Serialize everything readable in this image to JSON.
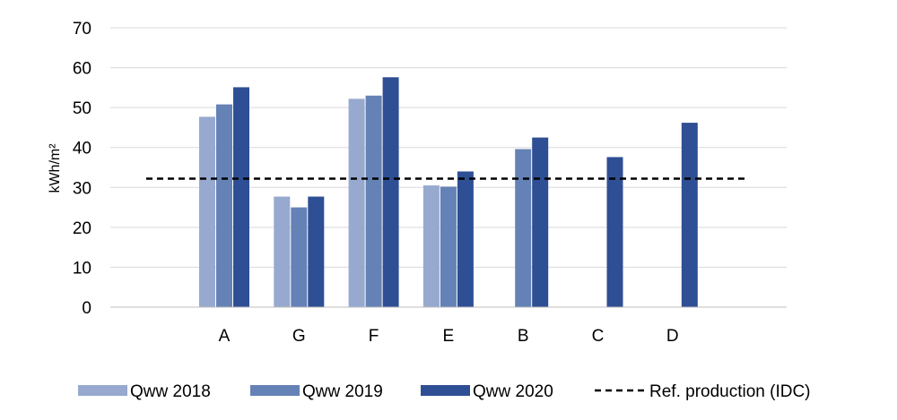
{
  "chart_data": {
    "type": "bar",
    "title": "",
    "xlabel": "",
    "ylabel": "kWh/m²",
    "ylim": [
      0,
      70
    ],
    "yticks": [
      0,
      10,
      20,
      30,
      40,
      50,
      60,
      70
    ],
    "grid": true,
    "legend_position": "bottom",
    "categories": [
      "A",
      "G",
      "F",
      "E",
      "B",
      "C",
      "D"
    ],
    "series": [
      {
        "name": "Qww 2018",
        "color": "#97a9cf",
        "values": [
          47.7,
          27.7,
          52.2,
          30.5,
          null,
          null,
          null
        ]
      },
      {
        "name": "Qww 2019",
        "color": "#6582b6",
        "values": [
          50.8,
          25.0,
          53.0,
          30.2,
          39.6,
          null,
          null
        ]
      },
      {
        "name": "Qww 2020",
        "color": "#2f4f94",
        "values": [
          55.1,
          27.7,
          57.6,
          34.0,
          42.5,
          37.6,
          46.2
        ]
      }
    ],
    "reference_line": {
      "name": "Ref. production (IDC)",
      "value": 32.2,
      "color": "#000000",
      "style": "dashed"
    }
  }
}
